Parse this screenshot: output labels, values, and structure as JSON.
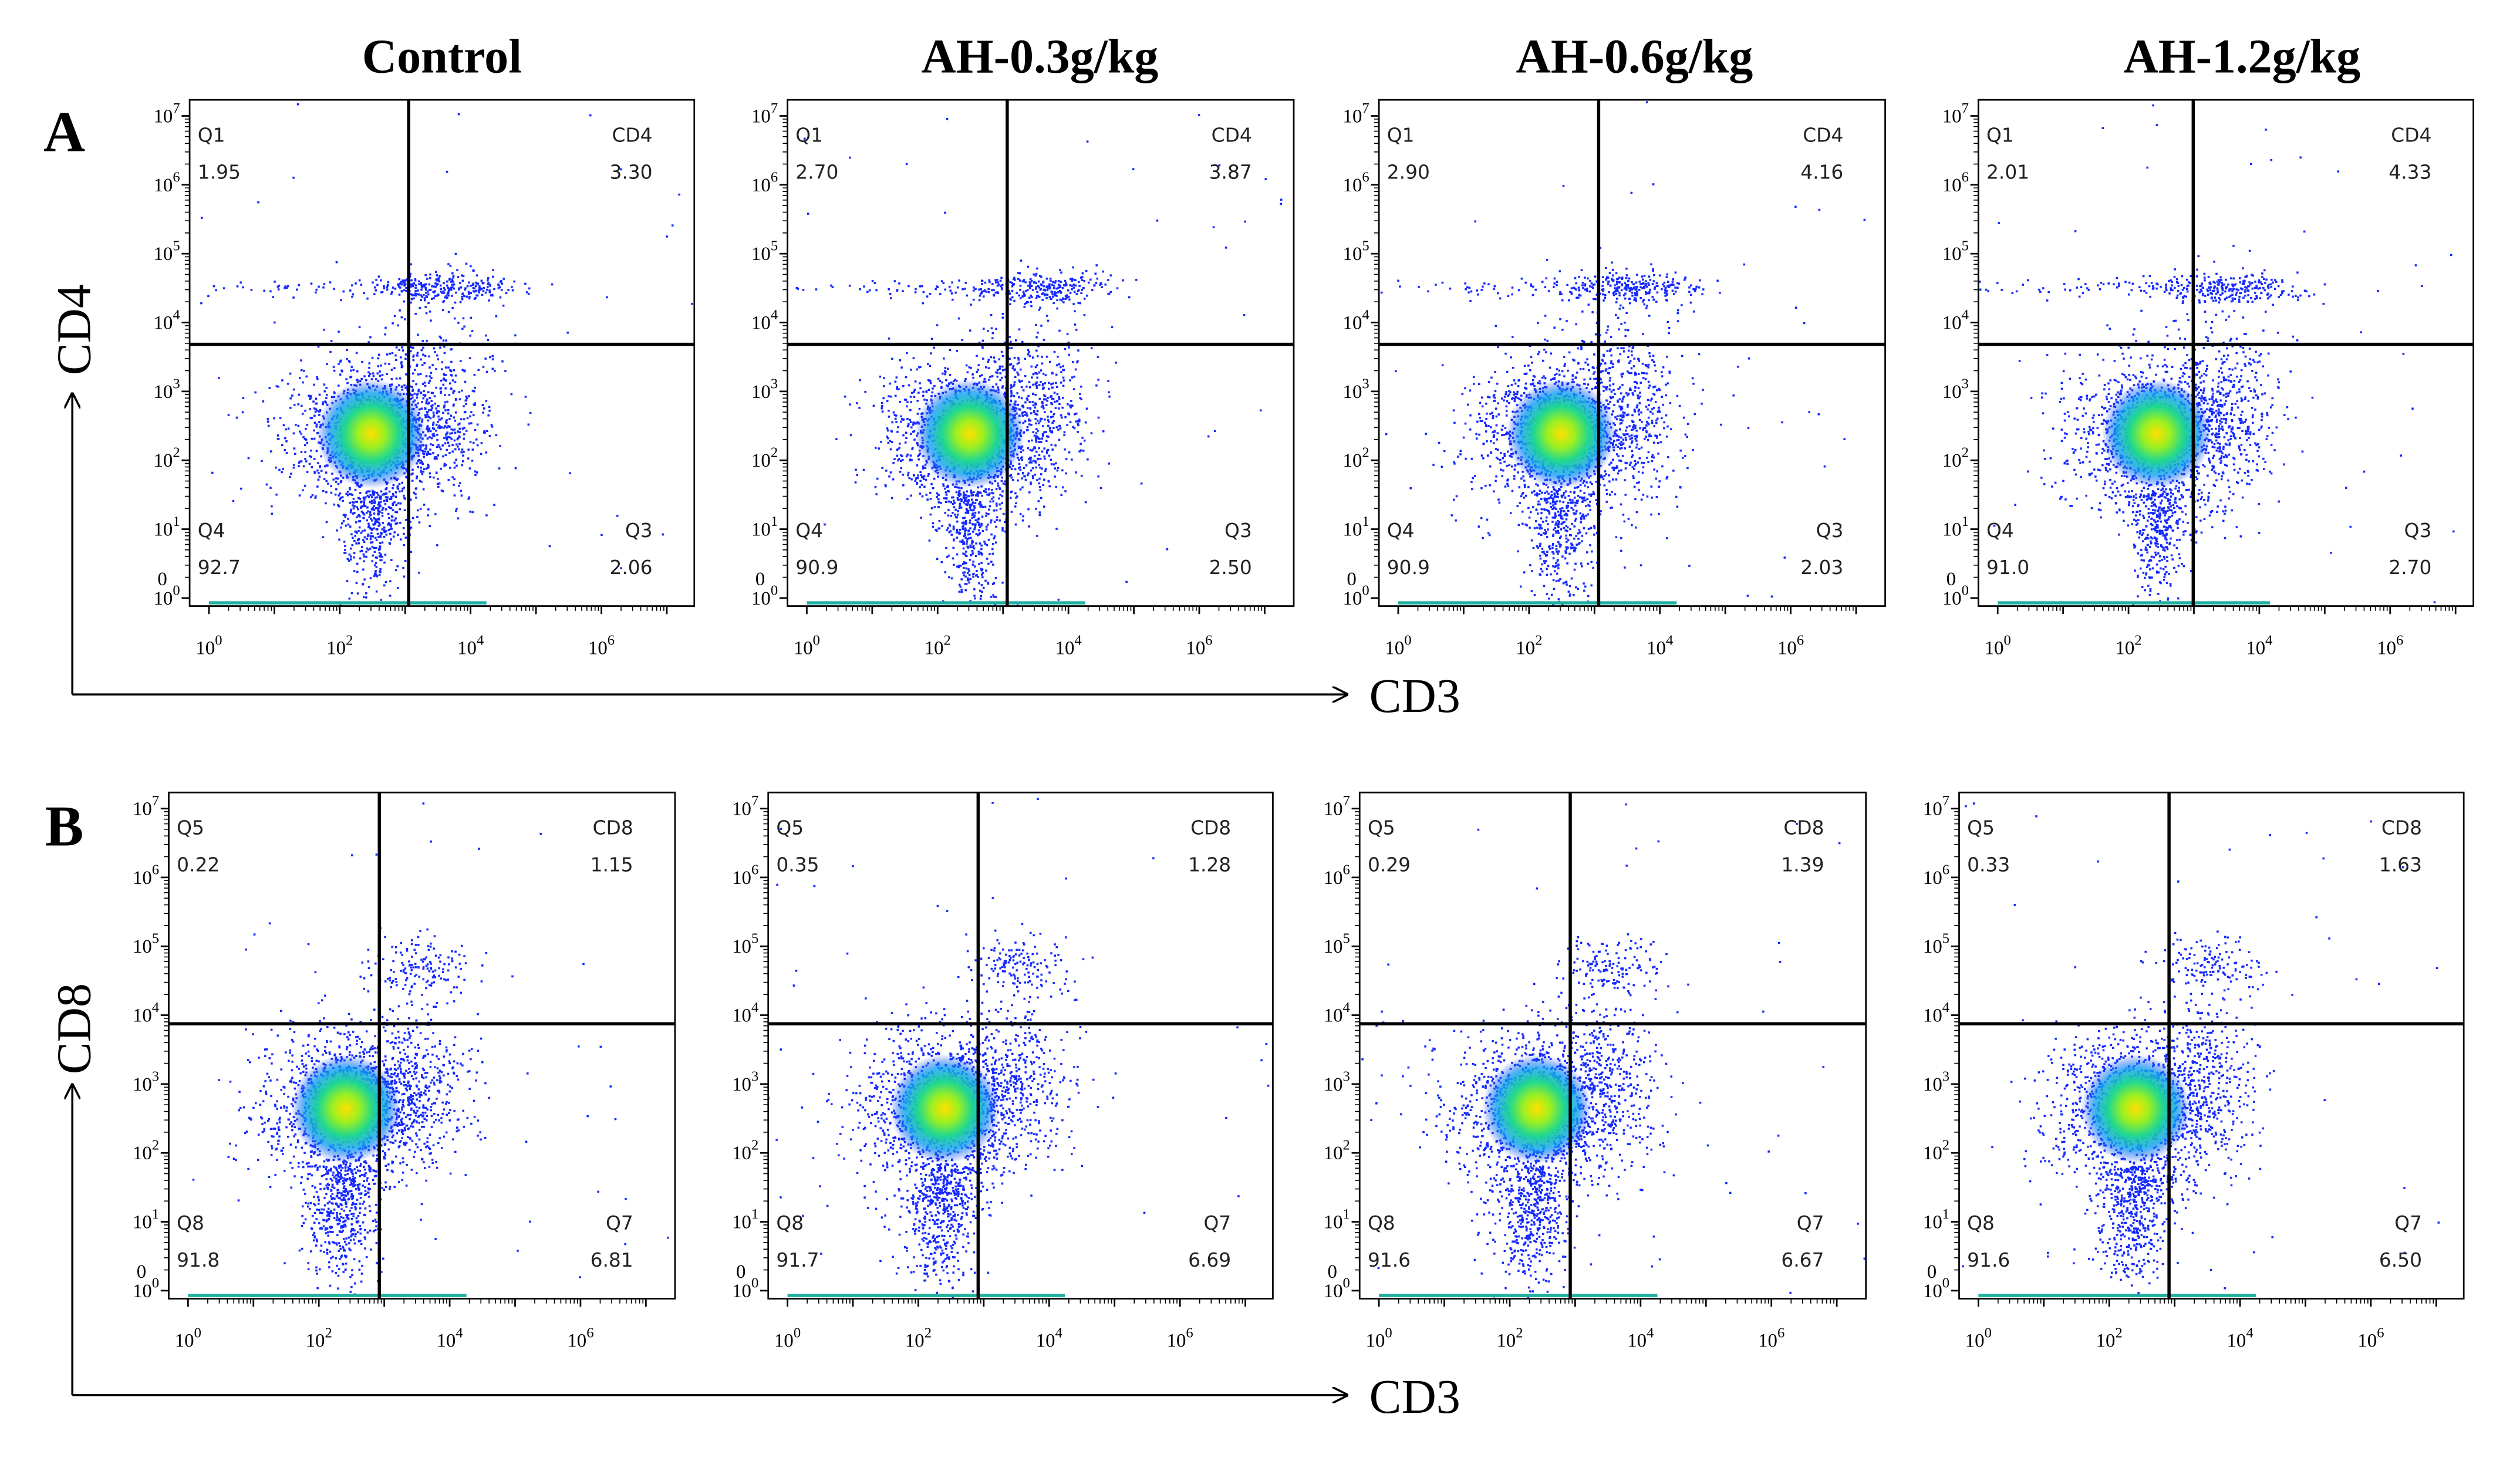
{
  "column_titles": [
    "Control",
    "AH-0.3g/kg",
    "AH-0.6g/kg",
    "AH-1.2g/kg"
  ],
  "tick_base": "10",
  "y_tick_exponents": [
    "7",
    "6",
    "5",
    "4",
    "3",
    "2",
    "1",
    "0"
  ],
  "y_zero_label": "0",
  "x_tick_exponents": [
    "0",
    "2",
    "4",
    "6"
  ],
  "rows": [
    {
      "label": "A",
      "y_axis": "CD4",
      "x_axis": "CD3",
      "panels": [
        {
          "quadrants": [
            {
              "name": "Q1",
              "value": "1.95"
            },
            {
              "name": "CD4",
              "value": "3.30"
            },
            {
              "name": "Q4",
              "value": "92.7"
            },
            {
              "name": "Q3",
              "value": "2.06"
            }
          ]
        },
        {
          "quadrants": [
            {
              "name": "Q1",
              "value": "2.70"
            },
            {
              "name": "CD4",
              "value": "3.87"
            },
            {
              "name": "Q4",
              "value": "90.9"
            },
            {
              "name": "Q3",
              "value": "2.50"
            }
          ]
        },
        {
          "quadrants": [
            {
              "name": "Q1",
              "value": "2.90"
            },
            {
              "name": "CD4",
              "value": "4.16"
            },
            {
              "name": "Q4",
              "value": "90.9"
            },
            {
              "name": "Q3",
              "value": "2.03"
            }
          ]
        },
        {
          "quadrants": [
            {
              "name": "Q1",
              "value": "2.01"
            },
            {
              "name": "CD4",
              "value": "4.33"
            },
            {
              "name": "Q4",
              "value": "91.0"
            },
            {
              "name": "Q3",
              "value": "2.70"
            }
          ]
        }
      ]
    },
    {
      "label": "B",
      "y_axis": "CD8",
      "x_axis": "CD3",
      "panels": [
        {
          "quadrants": [
            {
              "name": "Q5",
              "value": "0.22"
            },
            {
              "name": "CD8",
              "value": "1.15"
            },
            {
              "name": "Q8",
              "value": "91.8"
            },
            {
              "name": "Q7",
              "value": "6.81"
            }
          ]
        },
        {
          "quadrants": [
            {
              "name": "Q5",
              "value": "0.35"
            },
            {
              "name": "CD8",
              "value": "1.28"
            },
            {
              "name": "Q8",
              "value": "91.7"
            },
            {
              "name": "Q7",
              "value": "6.69"
            }
          ]
        },
        {
          "quadrants": [
            {
              "name": "Q5",
              "value": "0.29"
            },
            {
              "name": "CD8",
              "value": "1.39"
            },
            {
              "name": "Q8",
              "value": "91.6"
            },
            {
              "name": "Q7",
              "value": "6.67"
            }
          ]
        },
        {
          "quadrants": [
            {
              "name": "Q5",
              "value": "0.33"
            },
            {
              "name": "CD8",
              "value": "1.63"
            },
            {
              "name": "Q8",
              "value": "91.6"
            },
            {
              "name": "Q7",
              "value": "6.50"
            }
          ]
        }
      ]
    }
  ]
}
